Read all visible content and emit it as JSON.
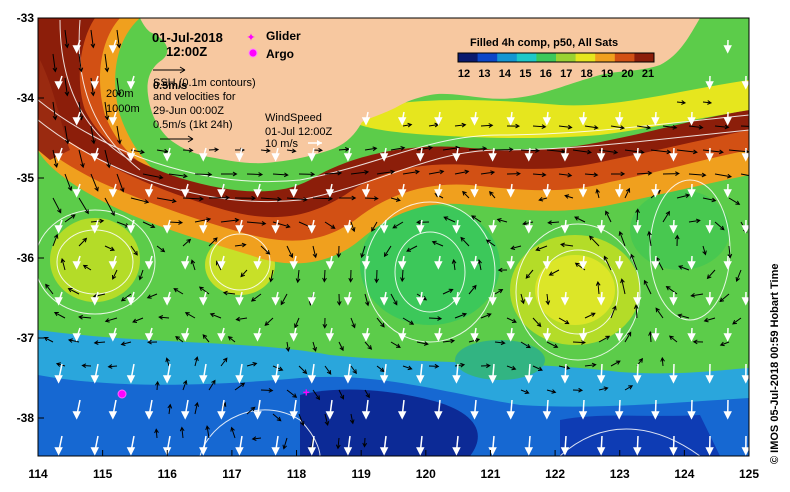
{
  "map": {
    "title_date": "01-Jul-2018",
    "title_time": "12:00Z",
    "legend": {
      "glider": "Glider",
      "argo": "Argo"
    },
    "colorbar": {
      "title": "Filled 4h comp, p50, All Sats",
      "ticks": [
        "12",
        "13",
        "14",
        "15",
        "16",
        "17",
        "18",
        "19",
        "20",
        "21"
      ],
      "colors": [
        "#0a1a6e",
        "#0c46c8",
        "#1496d2",
        "#1ec8c8",
        "#3cc85a",
        "#9ad232",
        "#e6e61e",
        "#f0a01e",
        "#d25014",
        "#8c1e0a"
      ]
    },
    "info": {
      "scale_label": "0.5m/s",
      "ssh_line1": "SSH (0.1m contours)",
      "ssh_line2": "and velocities for",
      "ssh_line3": "29-Jun 00:00Z",
      "vel_scale": "0.5m/s (1kt 24h)",
      "isobath_200": "200m",
      "isobath_1000": "1000m",
      "wind_title": "WindSpeed",
      "wind_time": "01-Jul 12:00Z",
      "wind_scale": "10 m/s"
    },
    "x_ticks": [
      "114",
      "115",
      "116",
      "117",
      "118",
      "119",
      "120",
      "121",
      "122",
      "123",
      "124",
      "125"
    ],
    "y_ticks": [
      "-33",
      "-34",
      "-35",
      "-36",
      "-37",
      "-38"
    ],
    "credit": "© IMOS 05-Jul-2018 00:59 Hobart Time",
    "colors": {
      "land": "#f7c8a0",
      "glider": "#ff00ff",
      "argo": "#ff00ff"
    },
    "markers": {
      "argo": {
        "lon": 115.3,
        "lat": -37.7
      },
      "glider": {
        "lon": 118.15,
        "lat": -37.68
      }
    }
  }
}
